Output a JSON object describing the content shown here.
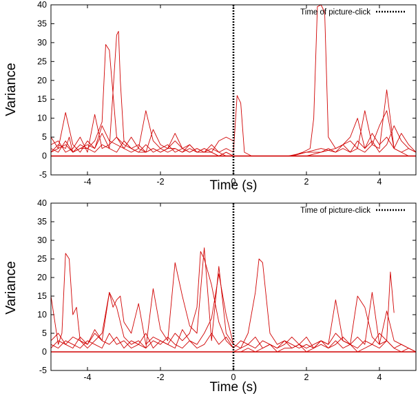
{
  "chart_data": [
    {
      "type": "line",
      "xlabel": "Time (s)",
      "ylabel": "Variance",
      "xlim": [
        -5,
        5
      ],
      "ylim": [
        -5,
        40
      ],
      "xticks": [
        "-4",
        "-2",
        "0",
        "2",
        "4"
      ],
      "yticks": [
        "-5",
        "0",
        "5",
        "10",
        "15",
        "20",
        "25",
        "30",
        "35",
        "40"
      ],
      "legend_label": "Time of picture-click",
      "legend_position": "top-right",
      "marker_x": 0,
      "line_color": "#d00000",
      "series": [
        {
          "x": [
            -5,
            -4.8,
            -4.6,
            -4.5,
            -4.4,
            -4.2,
            -4,
            -3.8,
            -3.6,
            -3.5,
            -3.4,
            -3.2,
            -3,
            -2.8,
            -2.6,
            -2.4,
            -2.2,
            -2,
            -1.8,
            -1.6,
            -1.4,
            -1.2,
            -1,
            -0.8,
            -0.6,
            -0.4,
            -0.2,
            0
          ],
          "y": [
            1,
            3,
            2,
            5,
            1,
            3,
            2,
            4,
            9,
            29.5,
            28,
            5,
            3,
            2,
            1,
            1,
            2,
            1,
            2,
            4,
            2,
            1,
            2,
            1,
            1,
            0,
            1,
            0
          ]
        },
        {
          "x": [
            -5,
            -4.8,
            -4.6,
            -4.4,
            -4.2,
            -4,
            -3.8,
            -3.6,
            -3.4,
            -3.2,
            -3.15,
            -3.1,
            -3,
            -2.8,
            -2.6,
            -2.4,
            -2.2,
            -2,
            -1.8,
            -1.6,
            -1.4,
            -1.2,
            -1,
            -0.8,
            -0.6,
            -0.4,
            -0.2,
            0
          ],
          "y": [
            2,
            1,
            4,
            1,
            2,
            3,
            2,
            6,
            2,
            32,
            33,
            20,
            4,
            2,
            1,
            3,
            1,
            2,
            1,
            2,
            1,
            3,
            1,
            2,
            1,
            0,
            1,
            0
          ]
        },
        {
          "x": [
            -5,
            -4.8,
            -4.6,
            -4.4,
            -4.2,
            -4,
            -3.8,
            -3.6,
            -3.4,
            -3.2,
            -3,
            -2.8,
            -2.6,
            -2.4,
            -2.2,
            -2,
            -1.8,
            -1.6,
            -1.4,
            -1.2,
            -1,
            -0.8,
            -0.6,
            -0.4,
            -0.2,
            0
          ],
          "y": [
            5,
            2,
            11.5,
            3,
            1,
            4,
            2,
            8,
            4,
            3,
            2,
            5,
            2,
            12,
            4,
            2,
            3,
            1,
            2,
            3,
            1,
            2,
            1,
            4,
            5,
            4
          ]
        },
        {
          "x": [
            -5,
            -4.8,
            -4.6,
            -4.4,
            -4.2,
            -4,
            -3.8,
            -3.6,
            -3.4,
            -3.2,
            -3,
            -2.8,
            -2.6,
            -2.4,
            -2.2,
            -2,
            -1.8,
            -1.6,
            -1.4,
            -1.2,
            -1,
            -0.8,
            -0.6,
            -0.4,
            -0.2,
            0
          ],
          "y": [
            3,
            4,
            1,
            2,
            5,
            1,
            11,
            2,
            3,
            5,
            2,
            1,
            2,
            1,
            7,
            3,
            2,
            6,
            2,
            1,
            2,
            1,
            3,
            1,
            2,
            1
          ]
        },
        {
          "x": [
            -5,
            -4.8,
            -4.6,
            -4.4,
            -4.2,
            -4,
            -3.8,
            -3.6,
            -3.4,
            -3.2,
            -3,
            -2.8,
            -2.6,
            -2.4,
            -2.2,
            -2,
            -1.8,
            -1.6,
            -1.4,
            -1.2,
            -1,
            -0.8,
            -0.6,
            -0.4,
            -0.2,
            0
          ],
          "y": [
            1,
            2,
            3,
            1,
            2,
            2,
            1,
            3,
            2,
            1,
            4,
            2,
            3,
            1,
            2,
            1,
            2,
            2,
            1,
            2,
            1,
            1,
            2,
            1,
            0,
            0
          ]
        },
        {
          "x": [
            0,
            0.1,
            0.2,
            0.3,
            0.5,
            0.8,
            1.2,
            1.6,
            1.9,
            2.1,
            2.2,
            2.3,
            2.4,
            2.5,
            2.6,
            2.8,
            3,
            3.2,
            3.4,
            3.6,
            3.8,
            4,
            4.2,
            4.4,
            4.6,
            4.8,
            5
          ],
          "y": [
            1,
            16,
            14,
            1,
            0,
            0,
            0,
            0,
            1,
            2,
            10,
            39.5,
            40,
            38,
            5,
            2,
            3,
            1,
            2,
            1,
            3,
            2,
            17.5,
            2,
            1,
            0,
            0
          ]
        },
        {
          "x": [
            0,
            0.4,
            0.8,
            1.2,
            1.6,
            2,
            2.4,
            2.8,
            3,
            3.2,
            3.4,
            3.6,
            3.8,
            4,
            4.2,
            4.4,
            4.6,
            4.8,
            5
          ],
          "y": [
            0,
            0,
            0,
            0,
            0,
            1,
            1,
            2,
            3,
            4,
            2,
            12,
            3,
            8,
            12,
            2,
            1,
            2,
            1
          ]
        },
        {
          "x": [
            0,
            0.4,
            0.8,
            1.2,
            1.6,
            2,
            2.4,
            2.6,
            2.8,
            3,
            3.2,
            3.4,
            3.6,
            3.8,
            4,
            4.2,
            4.4,
            4.6,
            4.8,
            5
          ],
          "y": [
            0,
            0,
            0,
            0,
            0,
            0,
            1,
            2,
            1,
            3,
            5,
            10,
            2,
            4,
            1,
            3,
            8,
            4,
            2,
            1
          ]
        },
        {
          "x": [
            0,
            0.5,
            1,
            1.5,
            2,
            2.4,
            2.8,
            3,
            3.2,
            3.4,
            3.6,
            3.8,
            4,
            4.2,
            4.4,
            4.6,
            4.8,
            5
          ],
          "y": [
            0,
            0,
            0,
            0,
            1,
            2,
            1,
            2,
            1,
            4,
            2,
            6,
            3,
            5,
            2,
            6,
            3,
            1
          ]
        }
      ]
    },
    {
      "type": "line",
      "xlabel": "Time (s)",
      "ylabel": "Variance",
      "xlim": [
        -5,
        5
      ],
      "ylim": [
        -5,
        40
      ],
      "xticks": [
        "-4",
        "-2",
        "0",
        "2",
        "4"
      ],
      "yticks": [
        "-5",
        "0",
        "5",
        "10",
        "15",
        "20",
        "25",
        "30",
        "35",
        "40"
      ],
      "legend_label": "Time of picture-click",
      "legend_position": "top-right",
      "marker_x": 0,
      "line_color": "#d00000",
      "series": [
        {
          "x": [
            -5,
            -4.8,
            -4.7,
            -4.6,
            -4.5,
            -4.4,
            -4.3,
            -4.2,
            -4,
            -3.8,
            -3.6,
            -3.4,
            -3.2,
            -3,
            -2.8,
            -2.6,
            -2.4,
            -2.2,
            -2,
            -1.8,
            -1.6,
            -1.4,
            -1.2,
            -1,
            -0.8,
            -0.6,
            -0.4,
            -0.2,
            0
          ],
          "y": [
            15,
            2,
            5,
            26.5,
            25,
            10,
            12,
            3,
            2,
            5,
            3,
            16,
            12,
            4,
            2,
            3,
            1,
            17,
            6,
            3,
            24,
            15,
            7,
            5,
            28,
            3,
            23,
            5,
            2
          ]
        },
        {
          "x": [
            -5,
            -4.8,
            -4.6,
            -4.4,
            -4.2,
            -4,
            -3.8,
            -3.6,
            -3.4,
            -3.3,
            -3.2,
            -3.1,
            -3,
            -2.8,
            -2.6,
            -2.4,
            -2.2,
            -2,
            -1.8,
            -1.6,
            -1.4,
            -1.2,
            -1,
            -0.9,
            -0.8,
            -0.6,
            -0.4,
            -0.2,
            0
          ],
          "y": [
            3,
            5,
            2,
            4,
            3,
            1,
            3,
            5,
            16,
            12,
            14,
            15,
            8,
            5,
            13,
            2,
            4,
            3,
            2,
            5,
            3,
            5,
            12,
            27,
            25,
            18,
            8,
            3,
            1
          ]
        },
        {
          "x": [
            -5,
            -4.8,
            -4.6,
            -4.4,
            -4.2,
            -4,
            -3.8,
            -3.6,
            -3.4,
            -3.2,
            -3,
            -2.8,
            -2.6,
            -2.4,
            -2.2,
            -2,
            -1.8,
            -1.6,
            -1.4,
            -1.2,
            -1,
            -0.8,
            -0.6,
            -0.4,
            -0.2,
            0
          ],
          "y": [
            1,
            3,
            2,
            1,
            4,
            2,
            6,
            3,
            2,
            4,
            1,
            3,
            2,
            5,
            1,
            3,
            2,
            1,
            6,
            3,
            2,
            5,
            9,
            21,
            10,
            2
          ]
        },
        {
          "x": [
            -5,
            -4.8,
            -4.6,
            -4.4,
            -4.2,
            -4,
            -3.8,
            -3.6,
            -3.4,
            -3.2,
            -3,
            -2.8,
            -2.6,
            -2.4,
            -2.2,
            -2,
            -1.8,
            -1.6,
            -1.4,
            -1.2,
            -1,
            -0.8,
            -0.6,
            -0.4,
            -0.2,
            0
          ],
          "y": [
            2,
            1,
            3,
            2,
            1,
            3,
            2,
            1,
            5,
            2,
            3,
            1,
            2,
            1,
            3,
            2,
            4,
            2,
            1,
            3,
            1,
            2,
            5,
            2,
            4,
            1
          ]
        },
        {
          "x": [
            0,
            0.2,
            0.4,
            0.6,
            0.7,
            0.8,
            1,
            1.2,
            1.4,
            1.6,
            1.8,
            2,
            2.2,
            2.4,
            2.6,
            2.8,
            3,
            3.2,
            3.4,
            3.6,
            3.8,
            4,
            4.2,
            4.3,
            4.4
          ],
          "y": [
            2,
            1,
            5,
            16,
            25,
            24,
            5,
            2,
            3,
            1,
            2,
            4,
            1,
            3,
            2,
            5,
            3,
            2,
            15,
            12,
            4,
            2,
            3,
            21.5,
            10.5
          ]
        },
        {
          "x": [
            0,
            0.2,
            0.4,
            0.6,
            0.8,
            1,
            1.2,
            1.4,
            1.6,
            1.8,
            2,
            2.2,
            2.4,
            2.6,
            2.8,
            3,
            3.2,
            3.4,
            3.6,
            3.8,
            4,
            4.2,
            4.4,
            4.6,
            4.8,
            5
          ],
          "y": [
            1,
            3,
            2,
            4,
            1,
            2,
            1,
            3,
            2,
            1,
            2,
            1,
            3,
            2,
            14,
            3,
            2,
            4,
            2,
            16,
            2,
            11,
            3,
            2,
            1,
            0
          ]
        },
        {
          "x": [
            0,
            0.2,
            0.4,
            0.6,
            0.8,
            1,
            1.2,
            1.4,
            1.6,
            1.8,
            2,
            2.2,
            2.4,
            2.6,
            2.8,
            3,
            3.2,
            3.4,
            3.6,
            3.8,
            4,
            4.2,
            4.4,
            4.6,
            4.8,
            5
          ],
          "y": [
            0,
            1,
            2,
            1,
            3,
            2,
            1,
            2,
            4,
            2,
            1,
            2,
            3,
            1,
            2,
            4,
            2,
            1,
            3,
            2,
            5,
            3,
            1,
            2,
            1,
            0
          ]
        },
        {
          "x": [
            0,
            0.2,
            0.4,
            0.6,
            0.8,
            1,
            1.2,
            1.4,
            1.6,
            1.8,
            2,
            2.2,
            2.4,
            2.6,
            2.8,
            3,
            3.2,
            3.4,
            3.6,
            3.8,
            4,
            4.2,
            4.4,
            4.6,
            4.8,
            5
          ],
          "y": [
            0,
            0,
            1,
            0,
            1,
            2,
            0,
            1,
            1,
            2,
            0,
            1,
            2,
            1,
            3,
            1,
            2,
            0,
            1,
            2,
            1,
            3,
            1,
            0,
            1,
            0
          ]
        }
      ]
    }
  ]
}
